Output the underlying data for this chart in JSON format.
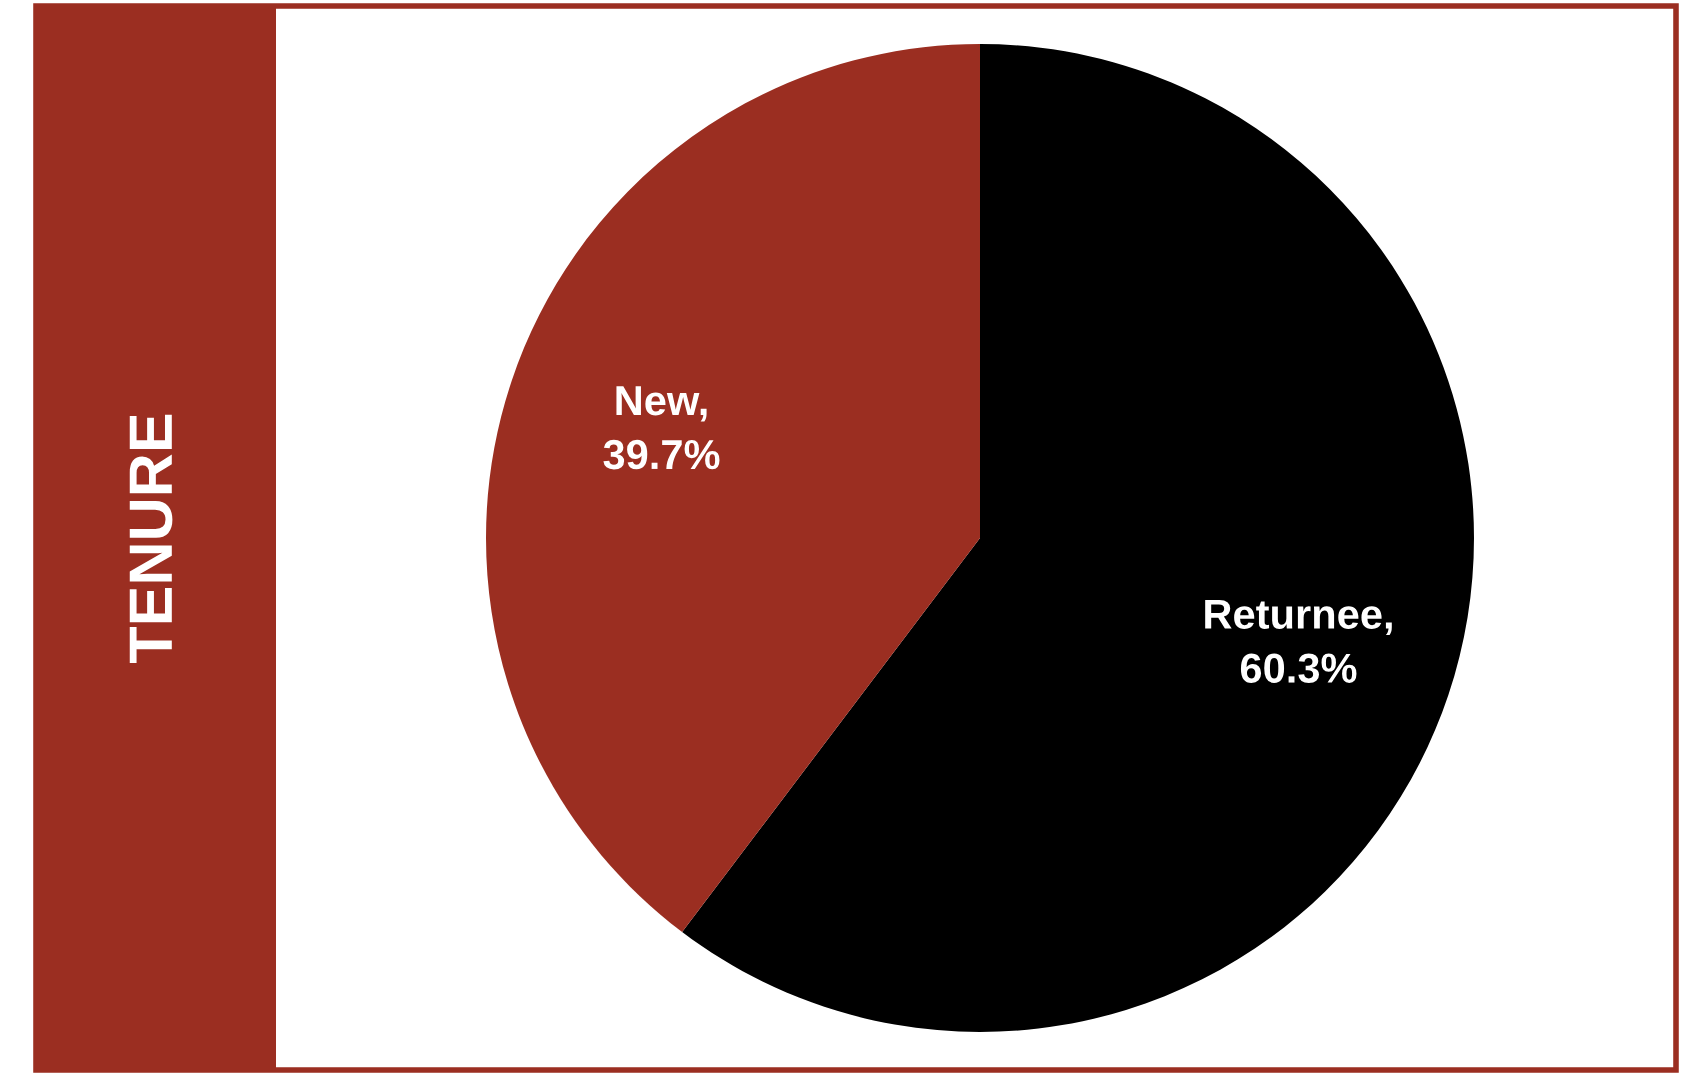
{
  "chart_data": {
    "type": "pie",
    "title": "TENURE",
    "categories": [
      "Returnee",
      "New"
    ],
    "values": [
      60.3,
      39.7
    ],
    "colors": [
      "#000000",
      "#9b2e21"
    ],
    "value_labels": [
      ",\n60.3%",
      ",\n39.7%"
    ]
  }
}
